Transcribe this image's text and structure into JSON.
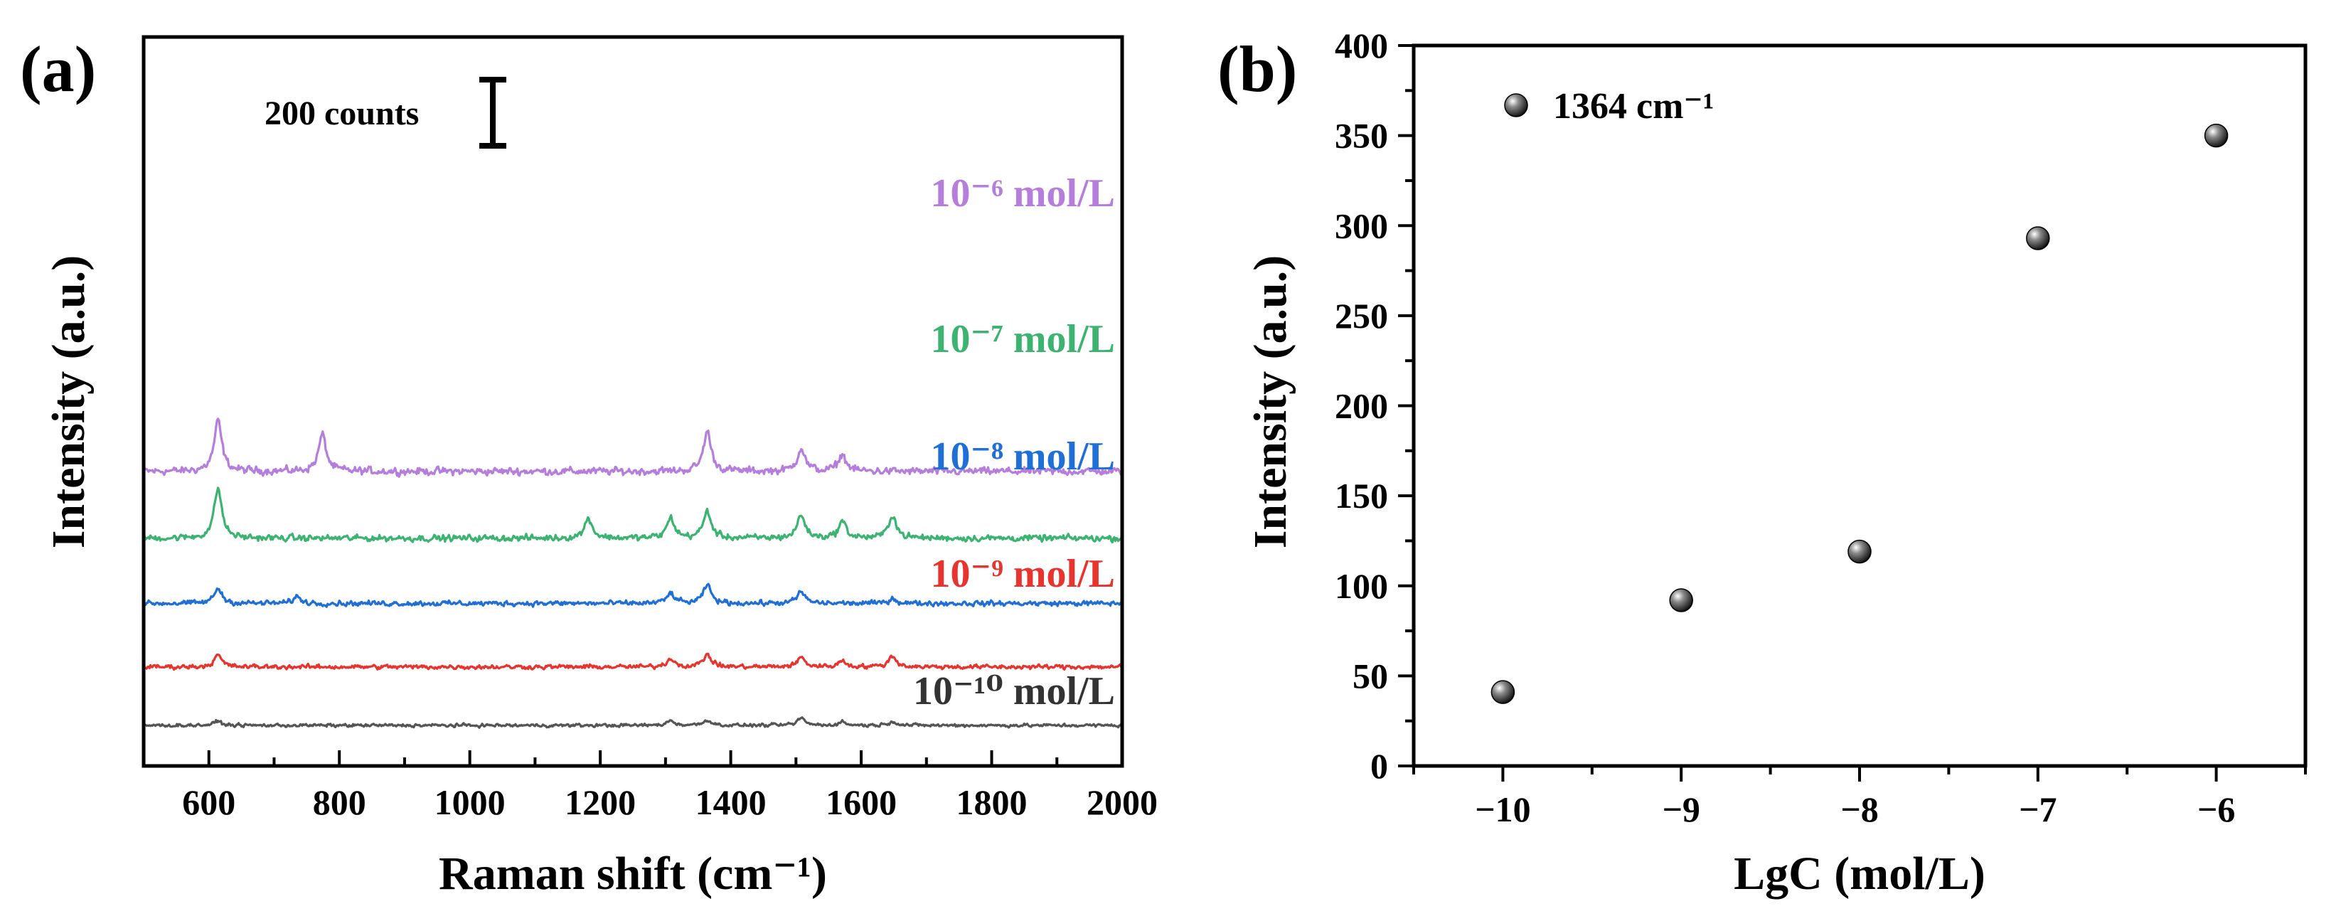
{
  "figure": {
    "panels": [
      {
        "label": "(a)",
        "chart_data": {
          "type": "line",
          "xlabel": "Raman shift (cm⁻¹)",
          "ylabel": "Intensity (a.u.)",
          "xlim": [
            500,
            2000
          ],
          "x_ticks": [
            600,
            800,
            1000,
            1200,
            1400,
            1600,
            1800,
            2000
          ],
          "y_ticks_shown": false,
          "scale_bar": {
            "label": "200 counts",
            "value": 200
          },
          "series": [
            {
              "name": "10⁻⁶ mol/L",
              "color": "#b57edc",
              "offset": 760,
              "noise": 24,
              "peaks": [
                [
                  614,
                  150
                ],
                [
                  774,
                  110
                ],
                [
                  1364,
                  120
                ],
                [
                  1508,
                  70
                ],
                [
                  1571,
                  50
                ]
              ]
            },
            {
              "name": "10⁻⁷ mol/L",
              "color": "#3cb371",
              "offset": 560,
              "noise": 20,
              "peaks": [
                [
                  614,
                  150
                ],
                [
                  1182,
                  60
                ],
                [
                  1308,
                  60
                ],
                [
                  1364,
                  80
                ],
                [
                  1508,
                  70
                ],
                [
                  1571,
                  50
                ],
                [
                  1648,
                  70
                ]
              ]
            },
            {
              "name": "10⁻⁸ mol/L",
              "color": "#1f6fd6",
              "offset": 365,
              "noise": 16,
              "peaks": [
                [
                  614,
                  45
                ],
                [
                  735,
                  20
                ],
                [
                  1308,
                  30
                ],
                [
                  1364,
                  55
                ],
                [
                  1508,
                  35
                ],
                [
                  1648,
                  15
                ]
              ]
            },
            {
              "name": "10⁻⁹ mol/L",
              "color": "#e8342e",
              "offset": 175,
              "noise": 14,
              "peaks": [
                [
                  614,
                  35
                ],
                [
                  1308,
                  25
                ],
                [
                  1364,
                  38
                ],
                [
                  1508,
                  28
                ],
                [
                  1571,
                  18
                ],
                [
                  1648,
                  32
                ]
              ]
            },
            {
              "name": "10⁻¹⁰ mol/L",
              "color": "#555555",
              "offset": 0,
              "noise": 10,
              "peaks": [
                [
                  614,
                  12
                ],
                [
                  1308,
                  14
                ],
                [
                  1364,
                  16
                ],
                [
                  1508,
                  22
                ],
                [
                  1571,
                  10
                ],
                [
                  1648,
                  12
                ]
              ]
            }
          ]
        }
      },
      {
        "label": "(b)",
        "chart_data": {
          "type": "scatter",
          "xlabel": "LgC (mol/L)",
          "ylabel": "Intensity (a.u.)",
          "xlim": [
            -10.5,
            -5.5
          ],
          "ylim": [
            0,
            400
          ],
          "x_ticks": [
            -10,
            -9,
            -8,
            -7,
            -6
          ],
          "y_ticks": [
            0,
            50,
            100,
            150,
            200,
            250,
            300,
            350,
            400
          ],
          "legend": {
            "label": "1364 cm⁻¹",
            "position": "top-left"
          },
          "points": [
            {
              "x": -10,
              "y": 41
            },
            {
              "x": -9,
              "y": 92
            },
            {
              "x": -8,
              "y": 119
            },
            {
              "x": -7,
              "y": 293
            },
            {
              "x": -6,
              "y": 350
            }
          ]
        }
      }
    ]
  }
}
